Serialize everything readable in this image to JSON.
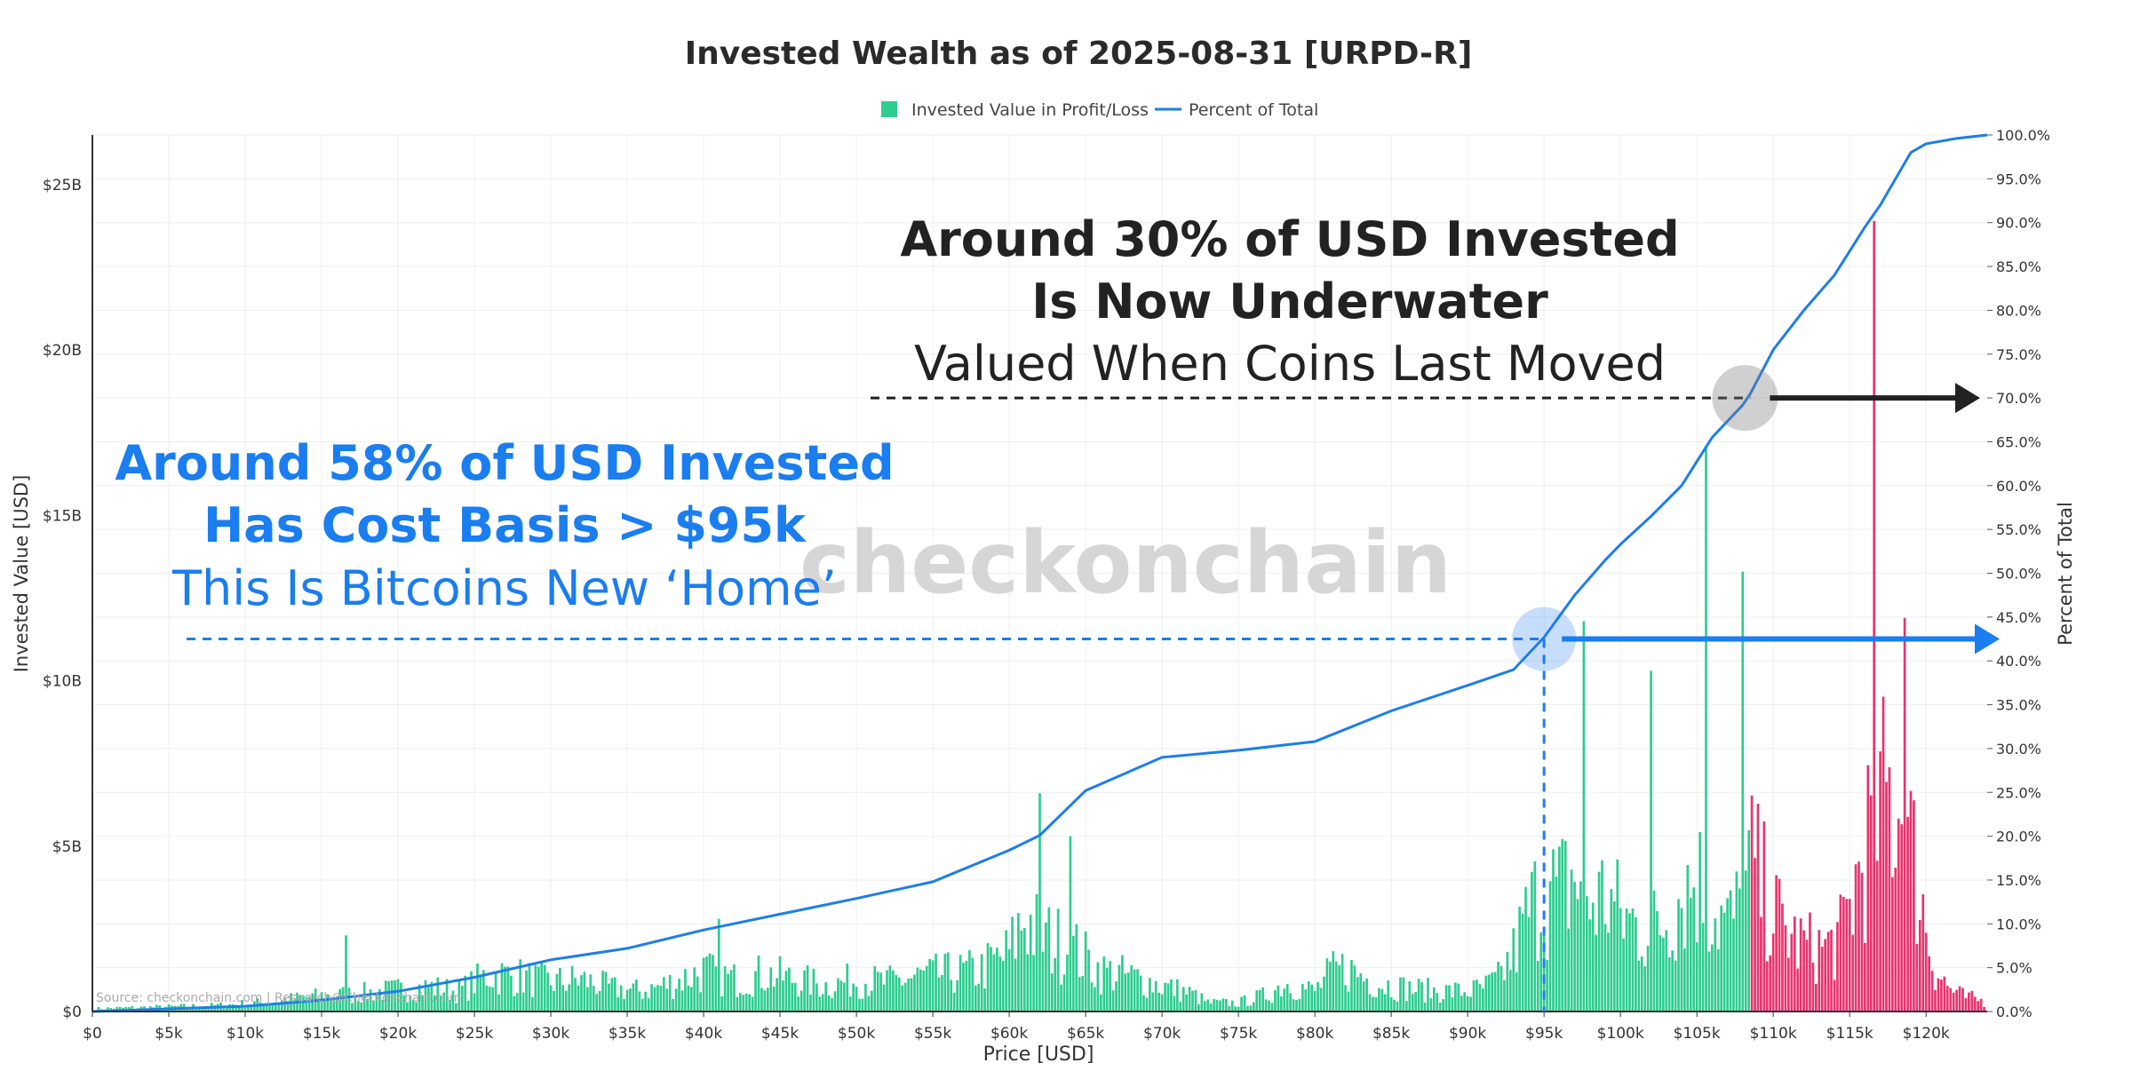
{
  "colors": {
    "profit": "#2ecc8f",
    "loss": "#e8336e",
    "cumulative": "#1e7ee6",
    "blue_note": "#1a7df0",
    "dark_note": "#222222",
    "grid": "#eeeeee",
    "watermark": "#d6d6d6"
  },
  "chart_data": {
    "type": "bar",
    "title": "Invested Wealth as of 2025-08-31 [URPD-R]",
    "xlabel": "Price [USD]",
    "ylabel": "Invested Value [USD]",
    "y2label": "Percent of Total",
    "xlim": [
      0,
      124000
    ],
    "ylim": [
      0,
      26.5
    ],
    "y2lim": [
      0,
      100
    ],
    "x_ticks": [
      {
        "v": 0,
        "label": "$0"
      },
      {
        "v": 5000,
        "label": "$5k"
      },
      {
        "v": 10000,
        "label": "$10k"
      },
      {
        "v": 15000,
        "label": "$15k"
      },
      {
        "v": 20000,
        "label": "$20k"
      },
      {
        "v": 25000,
        "label": "$25k"
      },
      {
        "v": 30000,
        "label": "$30k"
      },
      {
        "v": 35000,
        "label": "$35k"
      },
      {
        "v": 40000,
        "label": "$40k"
      },
      {
        "v": 45000,
        "label": "$45k"
      },
      {
        "v": 50000,
        "label": "$50k"
      },
      {
        "v": 55000,
        "label": "$55k"
      },
      {
        "v": 60000,
        "label": "$60k"
      },
      {
        "v": 65000,
        "label": "$65k"
      },
      {
        "v": 70000,
        "label": "$70k"
      },
      {
        "v": 75000,
        "label": "$75k"
      },
      {
        "v": 80000,
        "label": "$80k"
      },
      {
        "v": 85000,
        "label": "$85k"
      },
      {
        "v": 90000,
        "label": "$90k"
      },
      {
        "v": 95000,
        "label": "$95k"
      },
      {
        "v": 100000,
        "label": "$100k"
      },
      {
        "v": 105000,
        "label": "$105k"
      },
      {
        "v": 110000,
        "label": "$110k"
      },
      {
        "v": 115000,
        "label": "$115k"
      },
      {
        "v": 120000,
        "label": "$120k"
      }
    ],
    "y_ticks": [
      {
        "v": 0,
        "label": "$0"
      },
      {
        "v": 5,
        "label": "$5B"
      },
      {
        "v": 10,
        "label": "$10B"
      },
      {
        "v": 15,
        "label": "$15B"
      },
      {
        "v": 20,
        "label": "$20B"
      },
      {
        "v": 25,
        "label": "$25B"
      }
    ],
    "y2_ticks": [
      {
        "v": 0,
        "label": "0.0%"
      },
      {
        "v": 5,
        "label": "5.0%"
      },
      {
        "v": 10,
        "label": "10.0%"
      },
      {
        "v": 15,
        "label": "15.0%"
      },
      {
        "v": 20,
        "label": "20.0%"
      },
      {
        "v": 25,
        "label": "25.0%"
      },
      {
        "v": 30,
        "label": "30.0%"
      },
      {
        "v": 35,
        "label": "35.0%"
      },
      {
        "v": 40,
        "label": "40.0%"
      },
      {
        "v": 45,
        "label": "45.0%"
      },
      {
        "v": 50,
        "label": "50.0%"
      },
      {
        "v": 55,
        "label": "55.0%"
      },
      {
        "v": 60,
        "label": "60.0%"
      },
      {
        "v": 65,
        "label": "65.0%"
      },
      {
        "v": 70,
        "label": "70.0%"
      },
      {
        "v": 75,
        "label": "75.0%"
      },
      {
        "v": 80,
        "label": "80.0%"
      },
      {
        "v": 85,
        "label": "85.0%"
      },
      {
        "v": 90,
        "label": "90.0%"
      },
      {
        "v": 95,
        "label": "95.0%"
      },
      {
        "v": 100,
        "label": "100.0%"
      }
    ],
    "legend": {
      "position": "top-center",
      "items": [
        {
          "name": "Invested Value in Profit/Loss",
          "kind": "box"
        },
        {
          "name": "Percent of Total",
          "kind": "line"
        }
      ]
    },
    "current_price": 108500,
    "bar_envelope": [
      [
        0,
        0.1
      ],
      [
        4000,
        0.15
      ],
      [
        8000,
        0.2
      ],
      [
        12000,
        0.35
      ],
      [
        14000,
        0.5
      ],
      [
        17000,
        0.6
      ],
      [
        20000,
        0.75
      ],
      [
        22000,
        0.85
      ],
      [
        24000,
        0.7
      ],
      [
        26000,
        1.3
      ],
      [
        28000,
        1.2
      ],
      [
        30000,
        1.0
      ],
      [
        32000,
        1.1
      ],
      [
        34000,
        0.8
      ],
      [
        36000,
        0.7
      ],
      [
        38000,
        1.0
      ],
      [
        40000,
        1.4
      ],
      [
        42000,
        1.1
      ],
      [
        44000,
        1.3
      ],
      [
        46000,
        1.1
      ],
      [
        48000,
        0.9
      ],
      [
        50000,
        1.1
      ],
      [
        52000,
        1.0
      ],
      [
        54000,
        1.2
      ],
      [
        56000,
        1.3
      ],
      [
        58000,
        1.4
      ],
      [
        60000,
        2.0
      ],
      [
        61000,
        3.3
      ],
      [
        62000,
        2.6
      ],
      [
        64000,
        2.2
      ],
      [
        65000,
        1.8
      ],
      [
        66000,
        1.4
      ],
      [
        68000,
        1.2
      ],
      [
        70000,
        0.9
      ],
      [
        72000,
        0.6
      ],
      [
        73000,
        0.3
      ],
      [
        75000,
        0.3
      ],
      [
        77000,
        0.6
      ],
      [
        78000,
        1.0
      ],
      [
        80000,
        0.7
      ],
      [
        81000,
        1.3
      ],
      [
        82000,
        1.5
      ],
      [
        84000,
        1.0
      ],
      [
        86000,
        0.8
      ],
      [
        88000,
        0.7
      ],
      [
        90000,
        0.7
      ],
      [
        91000,
        0.8
      ],
      [
        92000,
        1.1
      ],
      [
        93000,
        2.0
      ],
      [
        94000,
        3.4
      ],
      [
        95000,
        4.2
      ],
      [
        96000,
        4.0
      ],
      [
        97000,
        4.7
      ],
      [
        98000,
        3.7
      ],
      [
        99000,
        4.0
      ],
      [
        100000,
        3.3
      ],
      [
        101000,
        3.0
      ],
      [
        102000,
        2.8
      ],
      [
        103000,
        3.2
      ],
      [
        104000,
        4.2
      ],
      [
        105000,
        4.6
      ],
      [
        106000,
        3.6
      ],
      [
        107000,
        3.0
      ],
      [
        108000,
        3.6
      ],
      [
        108500,
        5.2
      ],
      [
        109500,
        4.0
      ],
      [
        110500,
        3.0
      ],
      [
        111500,
        2.4
      ],
      [
        112500,
        2.2
      ],
      [
        113500,
        2.2
      ],
      [
        114500,
        2.6
      ],
      [
        115500,
        4.6
      ],
      [
        116500,
        6.5
      ],
      [
        117500,
        7.4
      ],
      [
        118500,
        7.0
      ],
      [
        119500,
        4.4
      ],
      [
        120500,
        1.6
      ],
      [
        121500,
        0.8
      ],
      [
        122500,
        0.5
      ],
      [
        123500,
        0.4
      ],
      [
        124000,
        0.3
      ]
    ],
    "spikes": [
      {
        "x": 16500,
        "y": 2.3
      },
      {
        "x": 41000,
        "y": 2.8
      },
      {
        "x": 62000,
        "y": 6.6
      },
      {
        "x": 64000,
        "y": 5.3
      },
      {
        "x": 97500,
        "y": 11.8
      },
      {
        "x": 102000,
        "y": 10.3
      },
      {
        "x": 105500,
        "y": 17.1
      },
      {
        "x": 108000,
        "y": 13.3
      },
      {
        "x": 116500,
        "y": 23.9
      },
      {
        "x": 118500,
        "y": 11.9
      }
    ],
    "cumulative_percent": [
      [
        0,
        0
      ],
      [
        5000,
        0.3
      ],
      [
        10000,
        0.6
      ],
      [
        15000,
        1.3
      ],
      [
        20000,
        2.3
      ],
      [
        25000,
        3.9
      ],
      [
        30000,
        5.9
      ],
      [
        35000,
        7.2
      ],
      [
        40000,
        9.3
      ],
      [
        45000,
        11.1
      ],
      [
        50000,
        12.9
      ],
      [
        55000,
        14.8
      ],
      [
        60000,
        18.4
      ],
      [
        62000,
        20.1
      ],
      [
        65000,
        25.2
      ],
      [
        70000,
        29.0
      ],
      [
        75000,
        29.8
      ],
      [
        80000,
        30.8
      ],
      [
        85000,
        34.3
      ],
      [
        90000,
        37.2
      ],
      [
        93000,
        39.0
      ],
      [
        95000,
        42.7
      ],
      [
        97000,
        47.5
      ],
      [
        99000,
        51.5
      ],
      [
        100000,
        53.3
      ],
      [
        102000,
        56.5
      ],
      [
        104000,
        60.0
      ],
      [
        106000,
        65.5
      ],
      [
        108000,
        69.2
      ],
      [
        108500,
        70.5
      ],
      [
        110000,
        75.5
      ],
      [
        112000,
        80.0
      ],
      [
        114000,
        84.0
      ],
      [
        116000,
        89.5
      ],
      [
        117000,
        92.0
      ],
      [
        118000,
        95.0
      ],
      [
        119000,
        98.0
      ],
      [
        120000,
        99.0
      ],
      [
        122000,
        99.6
      ],
      [
        124000,
        100
      ]
    ]
  },
  "annotations": {
    "blue": {
      "line1": "Around 58% of USD Invested",
      "line2": "Has Cost Basis > $95k",
      "line3": "This Is Bitcoins New ‘Home’",
      "x_price": 95000,
      "y_percent": 42.5
    },
    "dark": {
      "line1": "Around 30% of USD Invested",
      "line2": "Is Now Underwater",
      "line3": "Valued When Coins Last Moved",
      "x_price": 108500,
      "y_percent": 70
    }
  },
  "watermark": "checkonchain",
  "source_note": "Source: checkonchain.com | Research@Checkonchain.com"
}
